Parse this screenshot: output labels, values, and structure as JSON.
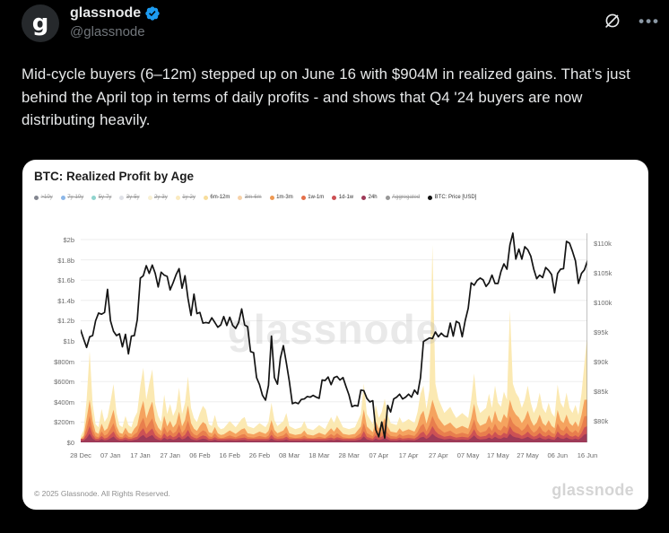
{
  "header": {
    "display_name": "glassnode",
    "handle": "@glassnode",
    "avatar_letter": "g"
  },
  "tweet": {
    "text": "Mid-cycle buyers (6–12m) stepped up on June 16 with $904M in realized gains. That’s just behind the April top in terms of daily profits - and shows that Q4 '24 buyers are now distributing heavily."
  },
  "chart": {
    "title": "BTC: Realized Profit by Age",
    "footer_copyright": "© 2025 Glassnode. All Rights Reserved.",
    "footer_watermark": "glassnode",
    "center_watermark": "glassnode"
  },
  "chart_data": {
    "type": "stacked_area+line",
    "title": "BTC: Realized Profit by Age",
    "grid": true,
    "legend_position": "top",
    "legend": [
      {
        "label": ">10y",
        "color": "#1e2235",
        "disabled": true
      },
      {
        "label": "7y-10y",
        "color": "#2e7cd6",
        "disabled": true
      },
      {
        "label": "5y-7y",
        "color": "#35b0a6",
        "disabled": true
      },
      {
        "label": "3y-5y",
        "color": "#c4c9d4",
        "disabled": true
      },
      {
        "label": "2y-3y",
        "color": "#f3e3b0",
        "disabled": true
      },
      {
        "label": "1y-2y",
        "color": "#f6d98a",
        "disabled": true
      },
      {
        "label": "6m-12m",
        "color": "#f7dd9b",
        "disabled": false
      },
      {
        "label": "3m-6m",
        "color": "#f0ad62",
        "disabled": true
      },
      {
        "label": "1m-3m",
        "color": "#ee9953",
        "disabled": false
      },
      {
        "label": "1w-1m",
        "color": "#e4704a",
        "disabled": false
      },
      {
        "label": "1d-1w",
        "color": "#cc4f53",
        "disabled": false
      },
      {
        "label": "24h",
        "color": "#9e3a58",
        "disabled": false
      },
      {
        "label": "Aggregated",
        "color": "#444444",
        "disabled": true
      },
      {
        "label": "BTC: Price [USD]",
        "color": "#111111",
        "disabled": false
      }
    ],
    "left_axis": {
      "labels": [
        "$2b",
        "$1.8b",
        "$1.6b",
        "$1.4b",
        "$1.2b",
        "$1b",
        "$800m",
        "$600m",
        "$400m",
        "$200m",
        "$0"
      ],
      "max_musd": 2000,
      "min_musd": 0
    },
    "right_axis": {
      "labels": [
        "$110k",
        "$105k",
        "$100k",
        "$95k",
        "$90k",
        "$85k",
        "$80k"
      ],
      "top_k": 110,
      "step_k": 5
    },
    "x_axis": {
      "tick_labels": [
        "28 Dec",
        "07 Jan",
        "17 Jan",
        "27 Jan",
        "06 Feb",
        "16 Feb",
        "26 Feb",
        "08 Mar",
        "18 Mar",
        "28 Mar",
        "07 Apr",
        "17 Apr",
        "27 Apr",
        "07 May",
        "17 May",
        "27 May",
        "06 Jun",
        "16 Jun"
      ],
      "tick_interval_days": 10,
      "max_day": 170
    },
    "bands": [
      {
        "name": "6m-12m",
        "color": "#FBE9B2",
        "share": 1.0,
        "cap_musd": 2000,
        "floor_musd": 0
      },
      {
        "name": "1m-3m",
        "color": "#F5A35F",
        "share": 0.56,
        "cap_musd": 420,
        "floor_musd": 0
      },
      {
        "name": "1w-1m",
        "color": "#E87E4D",
        "share": 0.33,
        "cap_musd": 260,
        "floor_musd": 0
      },
      {
        "name": "1d-1w",
        "color": "#CD5154",
        "share": 0.19,
        "cap_musd": 160,
        "floor_musd": 35
      },
      {
        "name": "24h",
        "color": "#9E3A58",
        "share": 0.1,
        "cap_musd": 85,
        "floor_musd": 18
      }
    ],
    "stack_total_musd": [
      [
        0,
        60
      ],
      [
        1,
        120
      ],
      [
        2,
        420
      ],
      [
        3,
        900
      ],
      [
        4,
        380
      ],
      [
        5,
        180
      ],
      [
        6,
        150
      ],
      [
        7,
        330
      ],
      [
        8,
        200
      ],
      [
        9,
        250
      ],
      [
        10,
        400
      ],
      [
        11,
        575
      ],
      [
        12,
        290
      ],
      [
        13,
        170
      ],
      [
        14,
        150
      ],
      [
        15,
        260
      ],
      [
        16,
        170
      ],
      [
        17,
        150
      ],
      [
        18,
        240
      ],
      [
        19,
        300
      ],
      [
        20,
        560
      ],
      [
        21,
        735
      ],
      [
        22,
        420
      ],
      [
        23,
        580
      ],
      [
        24,
        720
      ],
      [
        25,
        380
      ],
      [
        26,
        260
      ],
      [
        27,
        200
      ],
      [
        28,
        470
      ],
      [
        29,
        280
      ],
      [
        30,
        380
      ],
      [
        31,
        260
      ],
      [
        32,
        330
      ],
      [
        33,
        540
      ],
      [
        34,
        280
      ],
      [
        35,
        390
      ],
      [
        36,
        650
      ],
      [
        37,
        340
      ],
      [
        38,
        240
      ],
      [
        39,
        200
      ],
      [
        40,
        290
      ],
      [
        41,
        360
      ],
      [
        42,
        320
      ],
      [
        43,
        180
      ],
      [
        44,
        160
      ],
      [
        45,
        270
      ],
      [
        46,
        160
      ],
      [
        47,
        130
      ],
      [
        48,
        140
      ],
      [
        50,
        210
      ],
      [
        52,
        150
      ],
      [
        54,
        230
      ],
      [
        55,
        250
      ],
      [
        56,
        160
      ],
      [
        58,
        140
      ],
      [
        60,
        190
      ],
      [
        62,
        150
      ],
      [
        63,
        200
      ],
      [
        64,
        390
      ],
      [
        65,
        220
      ],
      [
        66,
        160
      ],
      [
        68,
        210
      ],
      [
        69,
        290
      ],
      [
        70,
        160
      ],
      [
        72,
        130
      ],
      [
        74,
        150
      ],
      [
        75,
        210
      ],
      [
        76,
        140
      ],
      [
        78,
        120
      ],
      [
        80,
        170
      ],
      [
        82,
        130
      ],
      [
        84,
        250
      ],
      [
        85,
        190
      ],
      [
        86,
        270
      ],
      [
        88,
        150
      ],
      [
        90,
        130
      ],
      [
        92,
        150
      ],
      [
        94,
        280
      ],
      [
        95,
        580
      ],
      [
        96,
        280
      ],
      [
        98,
        180
      ],
      [
        99,
        370
      ],
      [
        100,
        240
      ],
      [
        101,
        300
      ],
      [
        102,
        430
      ],
      [
        103,
        280
      ],
      [
        104,
        190
      ],
      [
        106,
        170
      ],
      [
        107,
        250
      ],
      [
        108,
        190
      ],
      [
        110,
        230
      ],
      [
        112,
        190
      ],
      [
        113,
        300
      ],
      [
        114,
        480
      ],
      [
        115,
        560
      ],
      [
        116,
        330
      ],
      [
        117,
        520
      ],
      [
        118,
        1950
      ],
      [
        119,
        580
      ],
      [
        120,
        430
      ],
      [
        121,
        360
      ],
      [
        122,
        290
      ],
      [
        124,
        350
      ],
      [
        125,
        290
      ],
      [
        126,
        240
      ],
      [
        128,
        290
      ],
      [
        130,
        240
      ],
      [
        131,
        420
      ],
      [
        132,
        680
      ],
      [
        133,
        380
      ],
      [
        134,
        290
      ],
      [
        136,
        340
      ],
      [
        137,
        480
      ],
      [
        138,
        340
      ],
      [
        139,
        560
      ],
      [
        140,
        390
      ],
      [
        141,
        350
      ],
      [
        142,
        500
      ],
      [
        143,
        420
      ],
      [
        144,
        1310
      ],
      [
        145,
        580
      ],
      [
        146,
        490
      ],
      [
        147,
        440
      ],
      [
        148,
        340
      ],
      [
        149,
        420
      ],
      [
        150,
        560
      ],
      [
        151,
        390
      ],
      [
        152,
        290
      ],
      [
        153,
        350
      ],
      [
        154,
        490
      ],
      [
        155,
        340
      ],
      [
        156,
        290
      ],
      [
        157,
        390
      ],
      [
        158,
        290
      ],
      [
        159,
        250
      ],
      [
        160,
        570
      ],
      [
        161,
        390
      ],
      [
        162,
        340
      ],
      [
        163,
        490
      ],
      [
        164,
        340
      ],
      [
        165,
        290
      ],
      [
        166,
        370
      ],
      [
        167,
        270
      ],
      [
        168,
        480
      ],
      [
        169,
        780
      ],
      [
        170,
        1060
      ]
    ],
    "price_usd_k": {
      "start_day": 0,
      "values": [
        95.3,
        93.8,
        92.4,
        94.2,
        94.4,
        96.9,
        98.2,
        98.0,
        98.3,
        102.2,
        96.9,
        95.1,
        94.4,
        94.7,
        92.5,
        94.6,
        91.3,
        94.3,
        94.4,
        97.1,
        104.1,
        104.5,
        106.2,
        104.9,
        106.3,
        104.9,
        102.6,
        105.1,
        104.6,
        104.4,
        102.1,
        103.3,
        104.7,
        105.7,
        102.4,
        104.5,
        100.7,
        97.8,
        101.4,
        98.1,
        98.3,
        96.5,
        96.6,
        96.5,
        97.4,
        96.6,
        95.8,
        96.2,
        97.6,
        96.1,
        97.5,
        96.1,
        95.6,
        96.6,
        98.9,
        96.2,
        95.9,
        91.7,
        91.5,
        87.3,
        86.1,
        84.3,
        83.5,
        86.0,
        94.3,
        87.3,
        86.2,
        90.6,
        92.7,
        89.8,
        86.7,
        82.9,
        83.1,
        82.9,
        83.6,
        83.7,
        84.1,
        84.0,
        84.3,
        84.0,
        83.8,
        86.9,
        86.8,
        87.4,
        86.1,
        87.3,
        87.5,
        86.9,
        87.3,
        85.8,
        84.4,
        82.4,
        82.6,
        82.5,
        85.2,
        85.1,
        83.8,
        83.2,
        83.4,
        78.5,
        77.3,
        79.8,
        77.1,
        82.6,
        81.5,
        83.7,
        84.0,
        84.5,
        83.7,
        84.0,
        84.5,
        84.0,
        85.2,
        84.5,
        87.3,
        93.4,
        93.7,
        94.0,
        93.9,
        95.0,
        94.2,
        94.8,
        94.3,
        94.2,
        96.5,
        94.3,
        96.8,
        96.5,
        94.2,
        96.9,
        99.0,
        103.3,
        102.9,
        103.7,
        104.1,
        103.8,
        102.7,
        103.3,
        104.6,
        103.2,
        103.2,
        105.2,
        106.5,
        105.6,
        109.7,
        111.7,
        107.3,
        109.0,
        107.3,
        109.4,
        108.9,
        107.8,
        105.6,
        104.0,
        104.6,
        104.2,
        105.9,
        105.4,
        104.7,
        101.6,
        104.9,
        105.6,
        105.7,
        110.3,
        110.0,
        108.6,
        107.0,
        103.2,
        104.9,
        105.5,
        107.0
      ]
    }
  }
}
